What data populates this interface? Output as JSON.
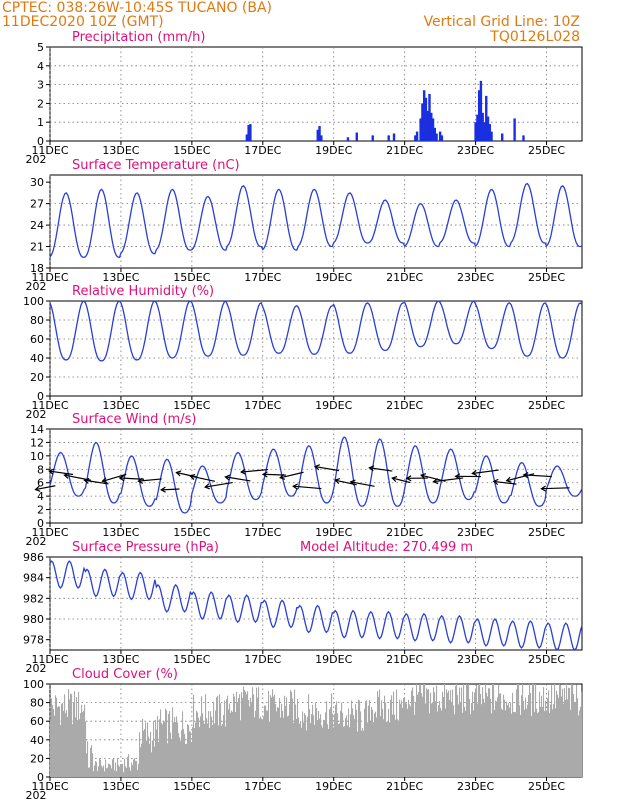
{
  "header": {
    "line1": "CPTEC:   038:26W-10:45S   TUCANO (BA)",
    "line2": "11DEC2020  10Z  (GMT)",
    "grid_note": "Vertical Grid Line: 10Z",
    "code": "TQ0126L028"
  },
  "colors": {
    "header": "#e07a10",
    "title": "#e0107a",
    "series": "#2a3fd6",
    "bars": "#1a2fe0",
    "cloud": "#aaaaaa",
    "grid": "#777777"
  },
  "x_axis": {
    "ticks": [
      "11DEC",
      "13DEC",
      "15DEC",
      "17DEC",
      "19DEC",
      "21DEC",
      "23DEC",
      "25DEC"
    ],
    "tick_days": [
      0,
      2,
      4,
      6,
      8,
      10,
      12,
      14
    ],
    "range_days": [
      0,
      15
    ],
    "first_tick_sublabel": "202"
  },
  "chart_data": [
    {
      "type": "bar",
      "title": "Precipitation (mm/h)",
      "ylim": [
        0,
        5
      ],
      "yticks": [
        "0",
        "1",
        "2",
        "3",
        "4",
        "5"
      ],
      "x": [
        5.55,
        5.6,
        5.65,
        7.55,
        7.6,
        7.65,
        8.4,
        8.65,
        9.1,
        9.55,
        9.7,
        10.3,
        10.35,
        10.45,
        10.5,
        10.55,
        10.6,
        10.65,
        10.7,
        10.75,
        10.8,
        10.85,
        10.9,
        11.0,
        11.05,
        12.0,
        12.05,
        12.1,
        12.15,
        12.2,
        12.25,
        12.3,
        12.35,
        12.4,
        12.45,
        12.75,
        13.1,
        13.35
      ],
      "values": [
        0.35,
        0.85,
        0.9,
        0.6,
        0.8,
        0.3,
        0.2,
        0.45,
        0.3,
        0.3,
        0.4,
        0.3,
        0.5,
        1.2,
        2.0,
        2.7,
        2.3,
        1.6,
        2.5,
        1.5,
        1.2,
        0.7,
        0.4,
        0.5,
        0.3,
        1.0,
        1.4,
        2.7,
        3.2,
        1.5,
        1.0,
        2.4,
        1.3,
        0.9,
        0.5,
        0.4,
        1.2,
        0.3
      ]
    },
    {
      "type": "line",
      "title": "Surface Temperature (nC)",
      "ylim": [
        18,
        31
      ],
      "yticks": [
        "18",
        "21",
        "24",
        "27",
        "30"
      ],
      "daily_max": [
        28.5,
        29.0,
        28.5,
        29.0,
        28.0,
        29.5,
        29.0,
        29.0,
        28.5,
        27.5,
        27.0,
        27.5,
        29.0,
        29.8,
        29.5
      ],
      "daily_min": [
        19.5,
        19.5,
        20.0,
        20.5,
        20.5,
        21.0,
        20.5,
        21.0,
        21.5,
        21.5,
        21.0,
        21.5,
        21.0,
        21.5,
        21.0
      ]
    },
    {
      "type": "line",
      "title": "Relative Humidity (%)",
      "ylim": [
        0,
        100
      ],
      "yticks": [
        "0",
        "20",
        "40",
        "60",
        "80",
        "100"
      ],
      "daily_max": [
        100,
        100,
        100,
        100,
        100,
        98,
        95,
        95,
        98,
        98,
        100,
        100,
        98,
        98,
        98
      ],
      "daily_min": [
        38,
        37,
        38,
        40,
        42,
        43,
        45,
        44,
        45,
        48,
        52,
        55,
        50,
        42,
        40
      ]
    },
    {
      "type": "line",
      "title": "Surface Wind (m/s)",
      "ylim": [
        0,
        14
      ],
      "yticks": [
        "0",
        "2",
        "4",
        "6",
        "8",
        "10",
        "12",
        "14"
      ],
      "daily_max": [
        10.5,
        12.0,
        10.0,
        9.5,
        8.5,
        10.5,
        11.0,
        11.5,
        12.8,
        12.5,
        11.5,
        11.0,
        10.0,
        9.0,
        8.5
      ],
      "daily_min": [
        4.0,
        3.0,
        2.5,
        1.5,
        3.0,
        3.5,
        4.0,
        3.0,
        2.5,
        2.5,
        3.0,
        3.5,
        3.0,
        2.5,
        4.0
      ],
      "vector_note": "wind direction vectors"
    },
    {
      "type": "line",
      "title": "Surface Pressure (hPa)",
      "annotation": "Model Altitude: 270.499 m",
      "ylim": [
        977,
        986
      ],
      "yticks": [
        "978",
        "980",
        "982",
        "984",
        "986"
      ],
      "daily_mean": [
        984.3,
        983.5,
        983.2,
        982.0,
        981.3,
        981.0,
        980.5,
        980.0,
        979.5,
        979.4,
        979.2,
        979.0,
        978.7,
        978.5,
        978.3
      ],
      "amplitude": 1.3
    },
    {
      "type": "bar",
      "title": "Cloud Cover (%)",
      "ylim": [
        0,
        100
      ],
      "yticks": [
        "0",
        "20",
        "40",
        "60",
        "80",
        "100"
      ],
      "daily_level": [
        75,
        20,
        45,
        55,
        70,
        80,
        75,
        70,
        65,
        75,
        85,
        85,
        85,
        85,
        85
      ]
    }
  ]
}
